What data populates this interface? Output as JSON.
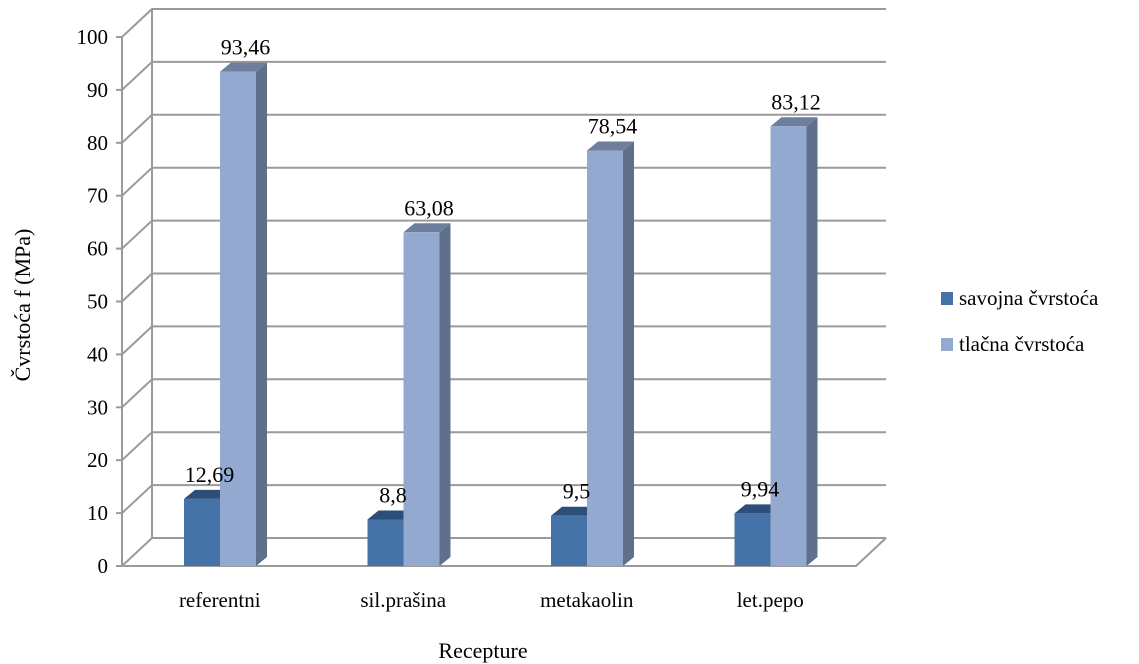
{
  "chart_data": {
    "type": "bar",
    "variant": "3d-clustered-column",
    "title": "",
    "xlabel": "Recepture",
    "ylabel": "Čvrstoća f (MPa)",
    "ylim": [
      0,
      100
    ],
    "ytick_step": 10,
    "grid": true,
    "legend_position": "right",
    "categories": [
      "referentni",
      "sil.prašina",
      "metakaolin",
      "let.pepo"
    ],
    "series": [
      {
        "name": "savojna čvrstoća",
        "values": [
          12.69,
          8.8,
          9.5,
          9.94
        ],
        "labels": [
          "12,69",
          "8,8",
          "9,5",
          "9,94"
        ],
        "color": "#4572A7"
      },
      {
        "name": "tlačna čvrstoća",
        "values": [
          93.46,
          63.08,
          78.54,
          83.12
        ],
        "labels": [
          "93,46",
          "63,08",
          "78,54",
          "83,12"
        ],
        "color": "#93A9CF"
      }
    ]
  }
}
